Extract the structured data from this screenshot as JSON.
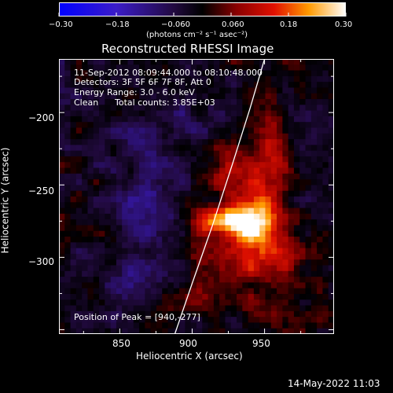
{
  "chart_data": {
    "type": "heatmap",
    "title": "Reconstructed RHESSI Image",
    "xlabel": "Heliocentric X (arcsec)",
    "ylabel": "Heliocentric Y (arcsec)",
    "xlim": [
      808,
      998
    ],
    "ylim": [
      -353,
      -163
    ],
    "x_ticks": [
      850,
      900,
      950
    ],
    "y_ticks": [
      -200,
      -250,
      -300
    ],
    "colorbar": {
      "label": "(photons cm⁻² s⁻¹ asec⁻²)",
      "range": [
        -0.3,
        0.3
      ],
      "ticks": [
        "−0.30",
        "−0.18",
        "−0.060",
        "0.060",
        "0.18",
        "0.30"
      ]
    },
    "annotations": {
      "time_range": "11-Sep-2012 08:09:44.000 to 08:10:48.000",
      "detectors": "Detectors: 3F 5F 6F 7F 8F, Att 0",
      "energy_range": "Energy Range: 3.0 - 6.0 keV",
      "algorithm": "Clean",
      "total_counts": "Total counts: 3.85E+03",
      "peak": "Position of Peak = [940,-277]"
    },
    "peak_position": [
      940,
      -277
    ],
    "limb_curve": [
      [
        888,
        -353
      ],
      [
        900,
        -318
      ],
      [
        914,
        -278
      ],
      [
        928,
        -235
      ],
      [
        940,
        -197
      ],
      [
        950,
        -163
      ]
    ],
    "emission_blobs": [
      {
        "x": 940,
        "y": -277,
        "amp": 0.31,
        "sx": 11,
        "sy": 11
      },
      {
        "x": 916,
        "y": -275,
        "amp": 0.24,
        "sx": 11,
        "sy": 7
      },
      {
        "x": 950,
        "y": -252,
        "amp": 0.15,
        "sx": 11,
        "sy": 15
      },
      {
        "x": 925,
        "y": -243,
        "amp": 0.11,
        "sx": 7,
        "sy": 12
      },
      {
        "x": 930,
        "y": -307,
        "amp": 0.12,
        "sx": 20,
        "sy": 12
      },
      {
        "x": 960,
        "y": -300,
        "amp": 0.1,
        "sx": 12,
        "sy": 12
      },
      {
        "x": 958,
        "y": -215,
        "amp": 0.1,
        "sx": 8,
        "sy": 14
      },
      {
        "x": 900,
        "y": -330,
        "amp": 0.09,
        "sx": 15,
        "sy": 9
      },
      {
        "x": 960,
        "y": -335,
        "amp": 0.08,
        "sx": 14,
        "sy": 10
      },
      {
        "x": 870,
        "y": -270,
        "amp": -0.08,
        "sx": 16,
        "sy": 30
      },
      {
        "x": 850,
        "y": -320,
        "amp": -0.07,
        "sx": 15,
        "sy": 14
      },
      {
        "x": 880,
        "y": -205,
        "amp": -0.05,
        "sx": 22,
        "sy": 18
      },
      {
        "x": 985,
        "y": -240,
        "amp": -0.03,
        "sx": 12,
        "sy": 30
      }
    ]
  },
  "footer": {
    "date": "14-May-2022 11:03"
  }
}
